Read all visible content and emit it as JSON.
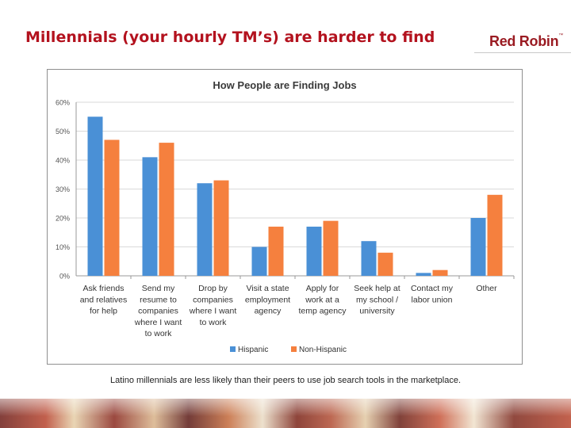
{
  "slide": {
    "title": "Millennials (your hourly TM’s) are harder to find",
    "logo_text": "Red Robin",
    "logo_mark": "™",
    "caption": "Latino millennials are less likely than their peers to use job search tools in the marketplace."
  },
  "chart_data": {
    "type": "bar",
    "title": "How People are Finding Jobs",
    "categories": [
      [
        "Ask friends",
        "and relatives",
        "for help"
      ],
      [
        "Send my",
        "resume to",
        "companies",
        "where I want",
        "to work"
      ],
      [
        "Drop by",
        "companies",
        "where I want",
        "to work"
      ],
      [
        "Visit a state",
        "employment",
        "agency"
      ],
      [
        "Apply for",
        "work at a",
        "temp agency"
      ],
      [
        "Seek help at",
        "my school /",
        "university"
      ],
      [
        "Contact my",
        "labor union"
      ],
      [
        "Other"
      ]
    ],
    "series": [
      {
        "name": "Hispanic",
        "color": "#4a90d6",
        "values": [
          55,
          41,
          32,
          10,
          17,
          12,
          1,
          20
        ]
      },
      {
        "name": "Non-Hispanic",
        "color": "#f5803e",
        "values": [
          47,
          46,
          33,
          17,
          19,
          8,
          2,
          28
        ]
      }
    ],
    "yticks": [
      "0%",
      "10%",
      "20%",
      "30%",
      "40%",
      "50%",
      "60%"
    ],
    "ylim": [
      0,
      60
    ],
    "grid": true,
    "legend": "bottom-center"
  }
}
